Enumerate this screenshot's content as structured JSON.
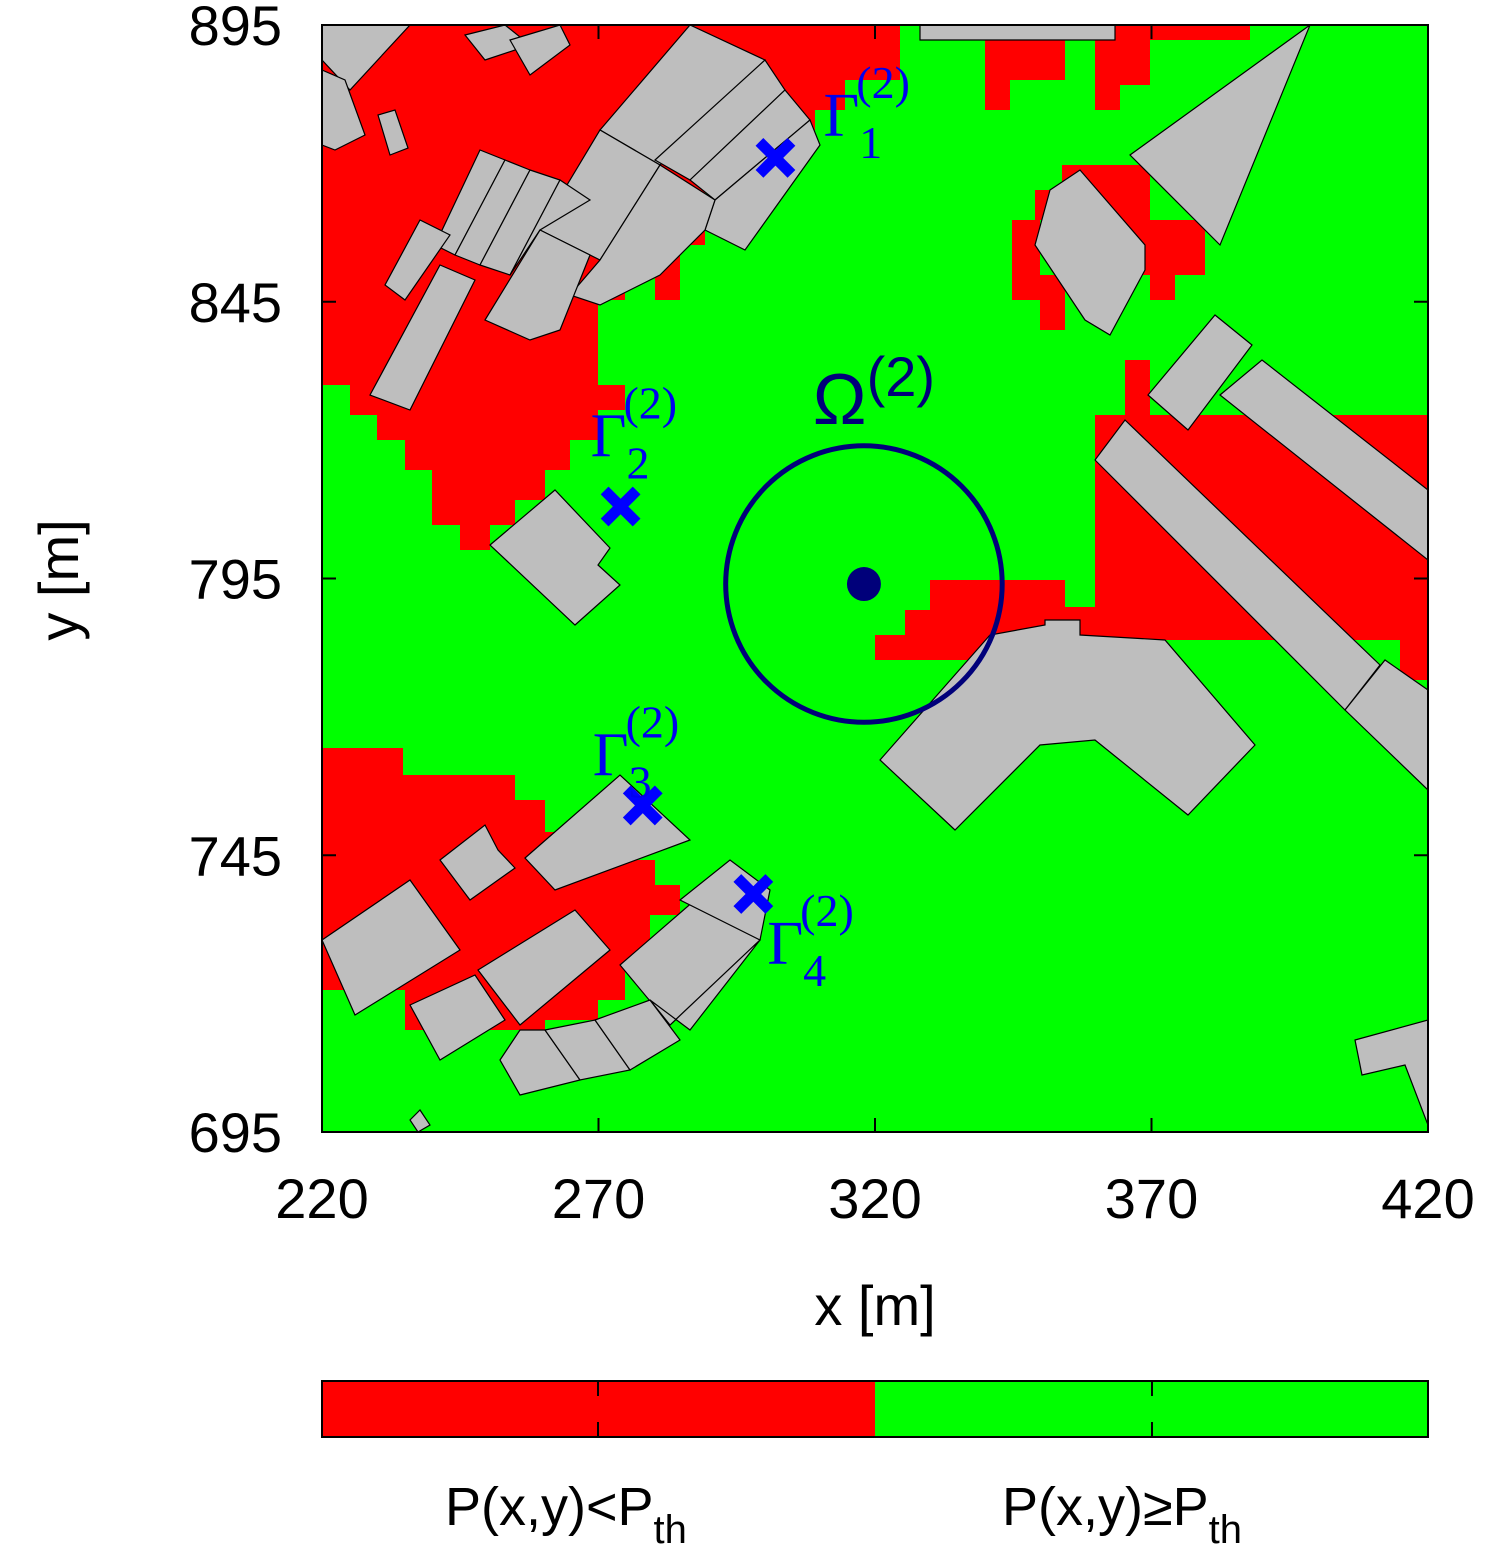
{
  "chart_data": {
    "type": "heatmap",
    "xlabel": "x [m]",
    "ylabel": "y [m]",
    "xlim": [
      220,
      420
    ],
    "ylim": [
      695,
      895
    ],
    "xticks": [
      "220",
      "270",
      "320",
      "370",
      "420"
    ],
    "yticks": [
      "695",
      "745",
      "795",
      "845",
      "895"
    ],
    "legend": {
      "placement": "bottom",
      "entries": [
        {
          "label": "P(x,y)<P",
          "sub": "th",
          "color": "#ff0000"
        },
        {
          "label": "P(x,y)≥P",
          "sub": "th",
          "color": "#00ff00"
        }
      ]
    },
    "colors": {
      "below": "#ff0000",
      "above": "#00ff00",
      "building": "#bebebe",
      "marker": "#0000ff",
      "region": "#00007a"
    },
    "region": {
      "label": "Ω",
      "sup": "(2)",
      "center": [
        318,
        794
      ],
      "radius": 25
    },
    "points": [
      {
        "label": "Γ",
        "sub": "1",
        "sup": "(2)",
        "x": 302,
        "y": 871
      },
      {
        "label": "Γ",
        "sub": "2",
        "sup": "(2)",
        "x": 274,
        "y": 808
      },
      {
        "label": "Γ",
        "sub": "3",
        "sup": "(2)",
        "x": 278,
        "y": 754
      },
      {
        "label": "Γ",
        "sub": "4",
        "sup": "(2)",
        "x": 298,
        "y": 738
      }
    ]
  }
}
